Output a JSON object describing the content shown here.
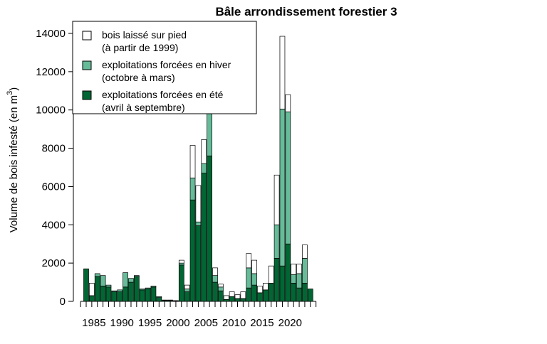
{
  "chart_data": {
    "type": "bar",
    "stacked": true,
    "title": "Bâle arrondissement forestier 3",
    "ylabel_main": "Volume de bois infesté (en m",
    "ylabel_sup": "3",
    "ylabel_end": ")",
    "xlabel": "",
    "ylim": [
      0,
      14000
    ],
    "yticks": [
      0,
      2000,
      4000,
      6000,
      8000,
      10000,
      12000,
      14000
    ],
    "xtick_labels": [
      1985,
      1990,
      1995,
      2000,
      2005,
      2010,
      2015,
      2020
    ],
    "grid": false,
    "legend_position": "top-left",
    "categories": [
      1984,
      1985,
      1986,
      1987,
      1988,
      1989,
      1990,
      1991,
      1992,
      1993,
      1994,
      1995,
      1996,
      1997,
      1998,
      1999,
      2000,
      2001,
      2002,
      2003,
      2004,
      2005,
      2006,
      2007,
      2008,
      2009,
      2010,
      2011,
      2012,
      2013,
      2014,
      2015,
      2016,
      2017,
      2018,
      2019,
      2020,
      2021,
      2022,
      2023,
      2024
    ],
    "series": [
      {
        "name_line1": "exploitations forcées en été",
        "name_line2": "(avril à septembre)",
        "color": "#006633",
        "values": [
          1700,
          300,
          1300,
          800,
          750,
          500,
          500,
          750,
          1000,
          1300,
          600,
          650,
          750,
          200,
          50,
          50,
          20,
          1900,
          500,
          5300,
          3950,
          6700,
          7600,
          1000,
          550,
          100,
          250,
          150,
          150,
          700,
          850,
          450,
          600,
          950,
          2250,
          1850,
          3000,
          950,
          700,
          950,
          650
        ]
      },
      {
        "name_line1": "exploitations forcées en hiver",
        "name_line2": "(octobre à mars)",
        "color": "#66bb99",
        "values": [
          0,
          0,
          150,
          550,
          100,
          50,
          100,
          750,
          200,
          50,
          50,
          50,
          50,
          50,
          20,
          20,
          20,
          100,
          150,
          1150,
          200,
          500,
          3000,
          350,
          200,
          0,
          0,
          0,
          0,
          1050,
          600,
          0,
          0,
          0,
          1750,
          8200,
          6900,
          450,
          750,
          1300,
          0
        ]
      },
      {
        "name_line1": "bois laissé sur pied",
        "name_line2": "(à partir de 1999)",
        "color": "#ffffff",
        "values": [
          0,
          650,
          0,
          0,
          0,
          0,
          0,
          0,
          0,
          0,
          0,
          0,
          0,
          0,
          0,
          0,
          0,
          150,
          200,
          1700,
          1900,
          1250,
          550,
          400,
          150,
          200,
          250,
          200,
          350,
          750,
          700,
          350,
          350,
          900,
          2600,
          3800,
          900,
          550,
          500,
          700,
          0
        ]
      }
    ]
  }
}
